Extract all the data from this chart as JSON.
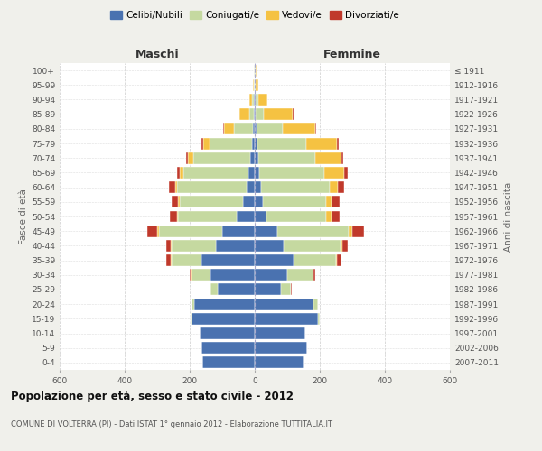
{
  "age_groups": [
    "0-4",
    "5-9",
    "10-14",
    "15-19",
    "20-24",
    "25-29",
    "30-34",
    "35-39",
    "40-44",
    "45-49",
    "50-54",
    "55-59",
    "60-64",
    "65-69",
    "70-74",
    "75-79",
    "80-84",
    "85-89",
    "90-94",
    "95-99",
    "100+"
  ],
  "birth_years": [
    "2007-2011",
    "2002-2006",
    "1997-2001",
    "1992-1996",
    "1987-1991",
    "1982-1986",
    "1977-1981",
    "1972-1976",
    "1967-1971",
    "1962-1966",
    "1957-1961",
    "1952-1956",
    "1947-1951",
    "1942-1946",
    "1937-1941",
    "1932-1936",
    "1927-1931",
    "1922-1926",
    "1917-1921",
    "1912-1916",
    "≤ 1911"
  ],
  "maschi": {
    "celibi": [
      160,
      165,
      170,
      195,
      185,
      115,
      135,
      165,
      120,
      100,
      55,
      35,
      25,
      20,
      15,
      8,
      5,
      3,
      2,
      1,
      1
    ],
    "coniugati": [
      0,
      0,
      0,
      2,
      10,
      20,
      60,
      90,
      135,
      195,
      180,
      195,
      215,
      200,
      175,
      130,
      60,
      15,
      5,
      2,
      1
    ],
    "vedovi": [
      0,
      0,
      0,
      0,
      0,
      1,
      1,
      2,
      3,
      5,
      5,
      5,
      5,
      10,
      15,
      20,
      30,
      30,
      10,
      3,
      1
    ],
    "divorziati": [
      0,
      0,
      0,
      0,
      0,
      3,
      5,
      15,
      15,
      30,
      20,
      20,
      20,
      10,
      5,
      5,
      3,
      0,
      0,
      0,
      0
    ]
  },
  "femmine": {
    "nubili": [
      150,
      160,
      155,
      195,
      180,
      80,
      100,
      120,
      90,
      70,
      35,
      25,
      20,
      15,
      12,
      8,
      5,
      3,
      2,
      1,
      1
    ],
    "coniugate": [
      0,
      0,
      0,
      5,
      15,
      30,
      80,
      130,
      175,
      220,
      185,
      195,
      210,
      200,
      175,
      150,
      80,
      25,
      8,
      2,
      1
    ],
    "vedove": [
      0,
      0,
      0,
      0,
      0,
      1,
      1,
      3,
      5,
      10,
      15,
      15,
      25,
      60,
      80,
      95,
      100,
      90,
      30,
      8,
      3
    ],
    "divorziate": [
      0,
      0,
      0,
      0,
      0,
      3,
      5,
      15,
      15,
      35,
      25,
      25,
      20,
      10,
      5,
      5,
      5,
      3,
      0,
      0,
      0
    ]
  },
  "colors": {
    "celibi": "#4a72b0",
    "coniugati": "#c5d9a0",
    "vedovi": "#f5c242",
    "divorziati": "#c0392b"
  },
  "xlim": 600,
  "title": "Popolazione per età, sesso e stato civile - 2012",
  "subtitle": "COMUNE DI VOLTERRA (PI) - Dati ISTAT 1° gennaio 2012 - Elaborazione TUTTITALIA.IT",
  "ylabel_left": "Fasce di età",
  "ylabel_right": "Anni di nascita",
  "xlabel_left": "Maschi",
  "xlabel_right": "Femmine",
  "bg_color": "#f0f0eb",
  "plot_bg": "#ffffff"
}
